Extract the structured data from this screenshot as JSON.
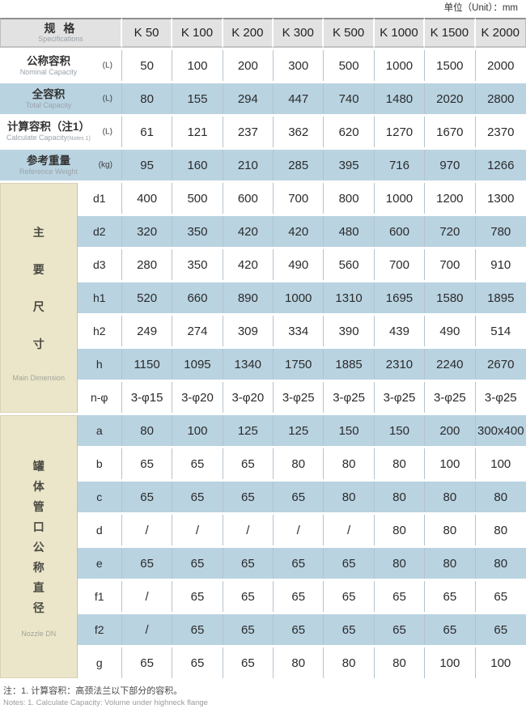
{
  "unit_note": "单位（Unit）：mm",
  "header": {
    "spec_label_cn": "规 格",
    "spec_label_en": "Specifications",
    "models": [
      "K 50",
      "K 100",
      "K 200",
      "K 300",
      "K 500",
      "K 1000",
      "K 1500",
      "K 2000"
    ]
  },
  "capacity_rows": [
    {
      "cn": "公称容积",
      "en": "Nominal Capacity",
      "en_note": "",
      "unit": "(L)",
      "shade": false,
      "values": [
        "50",
        "100",
        "200",
        "300",
        "500",
        "1000",
        "1500",
        "2000"
      ]
    },
    {
      "cn": "全容积",
      "en": "Total Capacity",
      "en_note": "",
      "unit": "(L)",
      "shade": true,
      "values": [
        "80",
        "155",
        "294",
        "447",
        "740",
        "1480",
        "2020",
        "2800"
      ]
    },
    {
      "cn": "计算容积（注1）",
      "en": "Calculate Capacity",
      "en_note": "(Notes 1)",
      "unit": "(L)",
      "shade": false,
      "values": [
        "61",
        "121",
        "237",
        "362",
        "620",
        "1270",
        "1670",
        "2370"
      ]
    },
    {
      "cn": "参考重量",
      "en": "Reference Weight",
      "en_note": "",
      "unit": "(kg)",
      "shade": true,
      "values": [
        "95",
        "160",
        "210",
        "285",
        "395",
        "716",
        "970",
        "1266"
      ]
    }
  ],
  "sections": [
    {
      "cn_chars": [
        "主",
        "要",
        "尺",
        "寸"
      ],
      "en": "Main Dimension",
      "char_gap": "wide",
      "rows": [
        {
          "param": "d1",
          "shade": false,
          "values": [
            "400",
            "500",
            "600",
            "700",
            "800",
            "1000",
            "1200",
            "1300"
          ]
        },
        {
          "param": "d2",
          "shade": true,
          "values": [
            "320",
            "350",
            "420",
            "420",
            "480",
            "600",
            "720",
            "780"
          ]
        },
        {
          "param": "d3",
          "shade": false,
          "values": [
            "280",
            "350",
            "420",
            "490",
            "560",
            "700",
            "700",
            "910"
          ]
        },
        {
          "param": "h1",
          "shade": true,
          "values": [
            "520",
            "660",
            "890",
            "1000",
            "1310",
            "1695",
            "1580",
            "1895"
          ]
        },
        {
          "param": "h2",
          "shade": false,
          "values": [
            "249",
            "274",
            "309",
            "334",
            "390",
            "439",
            "490",
            "514"
          ]
        },
        {
          "param": "h",
          "shade": true,
          "values": [
            "1150",
            "1095",
            "1340",
            "1750",
            "1885",
            "2310",
            "2240",
            "2670"
          ]
        },
        {
          "param": "n-φ",
          "shade": false,
          "values": [
            "3-φ15",
            "3-φ20",
            "3-φ20",
            "3-φ25",
            "3-φ25",
            "3-φ25",
            "3-φ25",
            "3-φ25"
          ]
        }
      ]
    },
    {
      "cn_chars": [
        "罐",
        "体",
        "管",
        "口",
        "公",
        "称",
        "直",
        "径"
      ],
      "en": "Nozzle DN",
      "char_gap": "narrow",
      "rows": [
        {
          "param": "a",
          "shade": true,
          "values": [
            "80",
            "100",
            "125",
            "125",
            "150",
            "150",
            "200",
            "300x400"
          ]
        },
        {
          "param": "b",
          "shade": false,
          "values": [
            "65",
            "65",
            "65",
            "80",
            "80",
            "80",
            "100",
            "100"
          ]
        },
        {
          "param": "c",
          "shade": true,
          "values": [
            "65",
            "65",
            "65",
            "65",
            "80",
            "80",
            "80",
            "80"
          ]
        },
        {
          "param": "d",
          "shade": false,
          "values": [
            "/",
            "/",
            "/",
            "/",
            "/",
            "80",
            "80",
            "80"
          ]
        },
        {
          "param": "e",
          "shade": true,
          "values": [
            "65",
            "65",
            "65",
            "65",
            "65",
            "80",
            "80",
            "80"
          ]
        },
        {
          "param": "f1",
          "shade": false,
          "values": [
            "/",
            "65",
            "65",
            "65",
            "65",
            "65",
            "65",
            "65"
          ]
        },
        {
          "param": "f2",
          "shade": true,
          "values": [
            "/",
            "65",
            "65",
            "65",
            "65",
            "65",
            "65",
            "65"
          ]
        },
        {
          "param": "g",
          "shade": false,
          "values": [
            "65",
            "65",
            "65",
            "80",
            "80",
            "80",
            "100",
            "100"
          ]
        }
      ]
    }
  ],
  "notes": {
    "cn": "注：1. 计算容积：高颈法兰以下部分的容积。",
    "en": "Notes: 1. Calculate Capacity: Volume under highneck flange"
  },
  "colors": {
    "row_blue": "#b9d3e1",
    "section_beige": "#ebe6c9",
    "header_gray": "#e2e2e2",
    "grid_line": "#b4c3cd"
  }
}
